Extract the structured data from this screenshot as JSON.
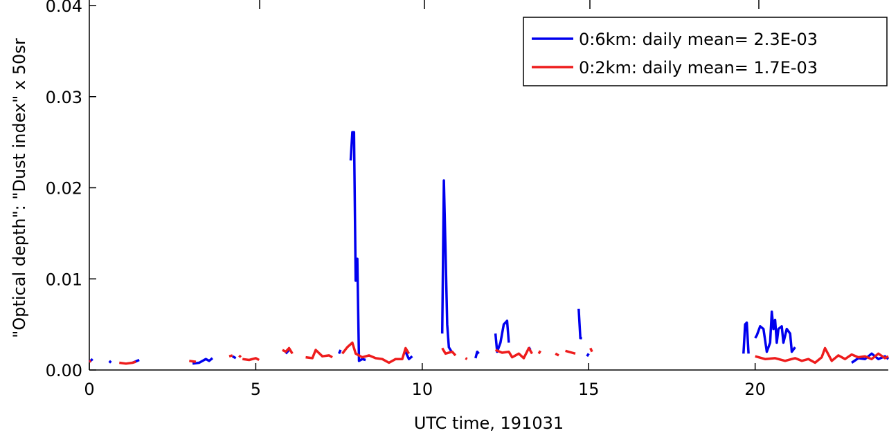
{
  "chart_data": {
    "type": "line",
    "title": "",
    "xlabel": "UTC time, 191031",
    "ylabel": "\"Optical depth\": \"Dust index\" x 50sr",
    "xlim": [
      0,
      24
    ],
    "ylim": [
      0,
      0.04
    ],
    "xticks": [
      0,
      5,
      10,
      15,
      20
    ],
    "xtick_labels": [
      "0",
      "5",
      "10",
      "15",
      "20"
    ],
    "yticks": [
      0,
      0.01,
      0.02,
      0.03,
      0.04
    ],
    "ytick_labels": [
      "0.00",
      "0.01",
      "0.02",
      "0.03",
      "0.04"
    ],
    "grid": false,
    "legend_position": "top-right",
    "series": [
      {
        "name": "0:6km: daily mean= 2.3E-03",
        "color": "#0000ee",
        "segments": [
          [
            [
              0.0,
              0.0009
            ],
            [
              0.1,
              0.0012
            ]
          ],
          [
            [
              0.6,
              0.0008
            ],
            [
              0.65,
              0.001
            ]
          ],
          [
            [
              1.3,
              0.0008
            ],
            [
              1.5,
              0.0011
            ]
          ],
          [
            [
              3.1,
              0.0007
            ],
            [
              3.3,
              0.0008
            ],
            [
              3.5,
              0.0012
            ],
            [
              3.6,
              0.001
            ],
            [
              3.7,
              0.0013
            ]
          ],
          [
            [
              4.3,
              0.0015
            ],
            [
              4.4,
              0.0013
            ]
          ],
          [
            [
              5.9,
              0.0018
            ],
            [
              6.0,
              0.0022
            ]
          ],
          [
            [
              7.5,
              0.0018
            ],
            [
              7.55,
              0.0022
            ]
          ],
          [
            [
              7.85,
              0.023
            ],
            [
              7.9,
              0.0261
            ],
            [
              7.95,
              0.0261
            ],
            [
              8.0,
              0.0098
            ],
            [
              8.03,
              0.0122
            ],
            [
              8.05,
              0.0122
            ],
            [
              8.1,
              0.001
            ],
            [
              8.2,
              0.0012
            ],
            [
              8.3,
              0.0011
            ]
          ],
          [
            [
              9.5,
              0.002
            ],
            [
              9.6,
              0.0012
            ],
            [
              9.7,
              0.0015
            ]
          ],
          [
            [
              10.6,
              0.004
            ],
            [
              10.65,
              0.0208
            ],
            [
              10.7,
              0.013
            ],
            [
              10.75,
              0.005
            ],
            [
              10.8,
              0.0025
            ],
            [
              10.9,
              0.0019
            ]
          ],
          [
            [
              11.6,
              0.0013
            ],
            [
              11.65,
              0.002
            ],
            [
              11.7,
              0.0018
            ]
          ],
          [
            [
              12.2,
              0.004
            ],
            [
              12.25,
              0.002
            ],
            [
              12.35,
              0.003
            ],
            [
              12.45,
              0.005
            ],
            [
              12.55,
              0.0054
            ],
            [
              12.6,
              0.003
            ]
          ],
          [
            [
              13.2,
              0.0025
            ],
            [
              13.25,
              0.0022
            ]
          ],
          [
            [
              14.7,
              0.0067
            ],
            [
              14.75,
              0.0035
            ],
            [
              14.8,
              0.0035
            ]
          ],
          [
            [
              14.95,
              0.0015
            ],
            [
              15.0,
              0.0018
            ]
          ],
          [
            [
              19.65,
              0.0018
            ],
            [
              19.7,
              0.005
            ],
            [
              19.75,
              0.0052
            ],
            [
              19.8,
              0.0018
            ]
          ],
          [
            [
              20.0,
              0.0035
            ],
            [
              20.05,
              0.0038
            ],
            [
              20.15,
              0.0048
            ],
            [
              20.25,
              0.0045
            ],
            [
              20.35,
              0.002
            ],
            [
              20.45,
              0.003
            ],
            [
              20.5,
              0.0064
            ],
            [
              20.55,
              0.0045
            ],
            [
              20.6,
              0.0055
            ],
            [
              20.65,
              0.003
            ],
            [
              20.7,
              0.0045
            ],
            [
              20.8,
              0.0048
            ],
            [
              20.85,
              0.003
            ],
            [
              20.95,
              0.0045
            ],
            [
              21.05,
              0.004
            ],
            [
              21.1,
              0.002
            ],
            [
              21.2,
              0.0025
            ]
          ],
          [
            [
              22.9,
              0.0008
            ],
            [
              23.1,
              0.0013
            ],
            [
              23.3,
              0.0012
            ],
            [
              23.5,
              0.0018
            ],
            [
              23.7,
              0.0012
            ],
            [
              23.9,
              0.0015
            ],
            [
              24.0,
              0.0012
            ]
          ]
        ]
      },
      {
        "name": "0:2km: daily mean= 1.7E-03",
        "color": "#ee1c1c",
        "segments": [
          [
            [
              0.0,
              0.0009
            ],
            [
              0.05,
              0.001
            ]
          ],
          [
            [
              0.9,
              0.0008
            ],
            [
              1.1,
              0.0007
            ],
            [
              1.3,
              0.0008
            ],
            [
              1.4,
              0.0009
            ]
          ],
          [
            [
              3.0,
              0.001
            ],
            [
              3.2,
              0.0009
            ]
          ],
          [
            [
              4.2,
              0.0015
            ],
            [
              4.3,
              0.0016
            ]
          ],
          [
            [
              4.5,
              0.0014
            ],
            [
              4.55,
              0.0016
            ]
          ],
          [
            [
              4.6,
              0.0012
            ],
            [
              4.8,
              0.0011
            ],
            [
              5.0,
              0.0013
            ],
            [
              5.1,
              0.0011
            ]
          ],
          [
            [
              5.8,
              0.0022
            ],
            [
              5.9,
              0.002
            ],
            [
              6.0,
              0.0024
            ],
            [
              6.1,
              0.0018
            ]
          ],
          [
            [
              6.5,
              0.0014
            ],
            [
              6.7,
              0.0013
            ],
            [
              6.8,
              0.0022
            ],
            [
              7.0,
              0.0015
            ],
            [
              7.2,
              0.0016
            ],
            [
              7.3,
              0.0014
            ]
          ],
          [
            [
              7.6,
              0.0018
            ],
            [
              7.75,
              0.0025
            ],
            [
              7.9,
              0.003
            ],
            [
              8.0,
              0.0018
            ],
            [
              8.2,
              0.0014
            ],
            [
              8.4,
              0.0016
            ],
            [
              8.6,
              0.0013
            ],
            [
              8.8,
              0.0012
            ],
            [
              9.0,
              0.0008
            ],
            [
              9.2,
              0.0012
            ],
            [
              9.4,
              0.0012
            ],
            [
              9.5,
              0.0024
            ],
            [
              9.6,
              0.0018
            ]
          ],
          [
            [
              10.6,
              0.0024
            ],
            [
              10.7,
              0.0018
            ],
            [
              10.9,
              0.002
            ],
            [
              11.0,
              0.0016
            ]
          ],
          [
            [
              11.3,
              0.0013
            ],
            [
              11.35,
              0.0012
            ]
          ],
          [
            [
              12.2,
              0.0022
            ],
            [
              12.4,
              0.0019
            ],
            [
              12.6,
              0.002
            ],
            [
              12.7,
              0.0014
            ],
            [
              12.9,
              0.0018
            ],
            [
              13.05,
              0.0013
            ],
            [
              13.2,
              0.0024
            ],
            [
              13.3,
              0.0018
            ]
          ],
          [
            [
              13.5,
              0.0018
            ],
            [
              13.55,
              0.0021
            ]
          ],
          [
            [
              14.0,
              0.0018
            ],
            [
              14.1,
              0.0016
            ]
          ],
          [
            [
              14.3,
              0.0021
            ],
            [
              14.5,
              0.0019
            ],
            [
              14.6,
              0.0018
            ]
          ],
          [
            [
              15.05,
              0.0024
            ],
            [
              15.1,
              0.002
            ]
          ],
          [
            [
              20.0,
              0.0015
            ],
            [
              20.3,
              0.0012
            ],
            [
              20.6,
              0.0013
            ],
            [
              20.9,
              0.001
            ],
            [
              21.2,
              0.0013
            ],
            [
              21.4,
              0.001
            ],
            [
              21.6,
              0.0012
            ],
            [
              21.8,
              0.0008
            ],
            [
              22.0,
              0.0014
            ],
            [
              22.1,
              0.0024
            ],
            [
              22.3,
              0.001
            ],
            [
              22.5,
              0.0016
            ],
            [
              22.7,
              0.0012
            ],
            [
              22.9,
              0.0017
            ],
            [
              23.1,
              0.0014
            ],
            [
              23.3,
              0.0015
            ],
            [
              23.5,
              0.0012
            ],
            [
              23.7,
              0.0018
            ],
            [
              23.9,
              0.0013
            ],
            [
              24.0,
              0.0015
            ]
          ]
        ]
      }
    ]
  }
}
